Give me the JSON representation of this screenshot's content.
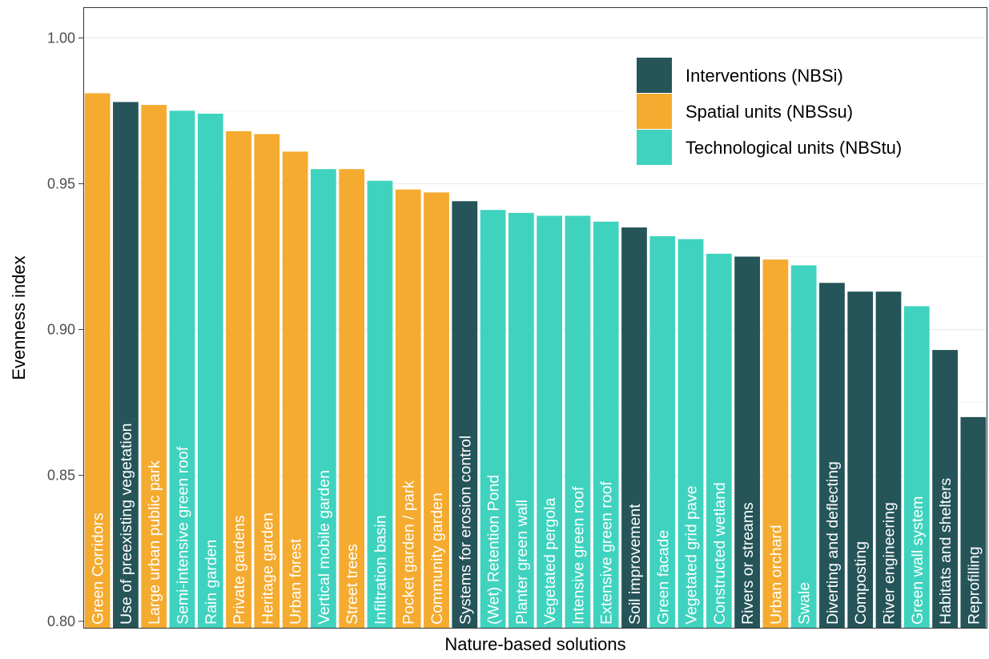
{
  "chart_data": {
    "type": "bar",
    "xlabel": "Nature-based solutions",
    "ylabel": "Evenness index",
    "ylim": [
      0.7975,
      1.0105
    ],
    "yticks": [
      0.8,
      0.85,
      0.9,
      0.95,
      1.0
    ],
    "ytick_labels": [
      "0.80",
      "0.85",
      "0.90",
      "0.95",
      "1.00"
    ],
    "grid": true,
    "legend_position": "top-right",
    "legend": [
      {
        "group": "NBSi",
        "label": "Interventions (NBSi)",
        "color": "#255459"
      },
      {
        "group": "NBSsu",
        "label": "Spatial units (NBSsu)",
        "color": "#F4AB2F"
      },
      {
        "group": "NBStu",
        "label": "Technological units (NBStu)",
        "color": "#3FD3BF"
      }
    ],
    "bars": [
      {
        "label": "Green Corridors",
        "value": 0.981,
        "group": "NBSsu"
      },
      {
        "label": "Use of preexisting vegetation",
        "value": 0.978,
        "group": "NBSi"
      },
      {
        "label": "Large urban public park",
        "value": 0.977,
        "group": "NBSsu"
      },
      {
        "label": "Semi-intensive green roof",
        "value": 0.975,
        "group": "NBStu"
      },
      {
        "label": "Rain garden",
        "value": 0.974,
        "group": "NBStu"
      },
      {
        "label": "Private gardens",
        "value": 0.968,
        "group": "NBSsu"
      },
      {
        "label": "Heritage garden",
        "value": 0.967,
        "group": "NBSsu"
      },
      {
        "label": "Urban forest",
        "value": 0.961,
        "group": "NBSsu"
      },
      {
        "label": "Vertical mobile garden",
        "value": 0.955,
        "group": "NBStu"
      },
      {
        "label": "Street trees",
        "value": 0.955,
        "group": "NBSsu"
      },
      {
        "label": "Infiltration basin",
        "value": 0.951,
        "group": "NBStu"
      },
      {
        "label": "Pocket garden / park",
        "value": 0.948,
        "group": "NBSsu"
      },
      {
        "label": "Community garden",
        "value": 0.947,
        "group": "NBSsu"
      },
      {
        "label": "Systems for erosion control",
        "value": 0.944,
        "group": "NBSi"
      },
      {
        "label": "(Wet) Retention Pond",
        "value": 0.941,
        "group": "NBStu"
      },
      {
        "label": "Planter green wall",
        "value": 0.94,
        "group": "NBStu"
      },
      {
        "label": "Vegetated pergola",
        "value": 0.939,
        "group": "NBStu"
      },
      {
        "label": "Intensive green roof",
        "value": 0.939,
        "group": "NBStu"
      },
      {
        "label": "Extensive green roof",
        "value": 0.937,
        "group": "NBStu"
      },
      {
        "label": "Soil improvement",
        "value": 0.935,
        "group": "NBSi"
      },
      {
        "label": "Green facade",
        "value": 0.932,
        "group": "NBStu"
      },
      {
        "label": "Vegetated grid pave",
        "value": 0.931,
        "group": "NBStu"
      },
      {
        "label": "Constructed wetland",
        "value": 0.926,
        "group": "NBStu"
      },
      {
        "label": "Rivers or streams",
        "value": 0.925,
        "group": "NBSi"
      },
      {
        "label": "Urban orchard",
        "value": 0.924,
        "group": "NBSsu"
      },
      {
        "label": "Swale",
        "value": 0.922,
        "group": "NBStu"
      },
      {
        "label": "Diverting and deflecting",
        "value": 0.916,
        "group": "NBSi"
      },
      {
        "label": "Composting",
        "value": 0.913,
        "group": "NBSi"
      },
      {
        "label": "River engineering",
        "value": 0.913,
        "group": "NBSi"
      },
      {
        "label": "Green wall system",
        "value": 0.908,
        "group": "NBStu"
      },
      {
        "label": "Habitats and shelters",
        "value": 0.893,
        "group": "NBSi"
      },
      {
        "label": "Reprofilling",
        "value": 0.87,
        "group": "NBSi"
      }
    ]
  }
}
